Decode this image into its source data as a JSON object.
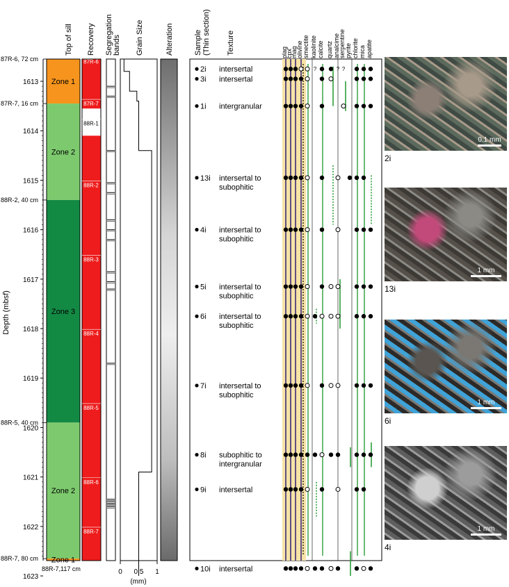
{
  "headers": {
    "top_of_sill": "Top of sill",
    "recovery": "Recovery",
    "segregation": [
      "Segregation",
      "bands"
    ],
    "grain_size": "Grain Size",
    "alteration": "Alteration",
    "sample": [
      "Sample",
      "(Thin section)"
    ],
    "texture": "Texture",
    "depth_axis": "Depth (mbsf)",
    "grain_unit": "(mm)"
  },
  "depth_ticks": [
    "1613",
    "1614",
    "1615",
    "1616",
    "1617",
    "1618",
    "1619",
    "1620",
    "1621",
    "1622",
    "1623"
  ],
  "depth_values": [
    1613,
    1614,
    1615,
    1616,
    1617,
    1618,
    1619,
    1620,
    1621,
    1622,
    1623
  ],
  "core_labels": [
    {
      "text": "87R-6, 72 cm",
      "depth": 1612.55
    },
    {
      "text": "87R-7, 16 cm",
      "depth": 1613.45
    },
    {
      "text": "88R-2, 40 cm",
      "depth": 1615.4
    },
    {
      "text": "88R-5, 40 cm",
      "depth": 1619.9
    },
    {
      "text": "88R-7, 80 cm",
      "depth": 1622.65
    },
    {
      "text": "88R-7,117 cm",
      "depth": 1623.2
    }
  ],
  "zones": [
    {
      "name": "Zone 1",
      "top": 1612.55,
      "bottom": 1613.45,
      "color": "#f7941d"
    },
    {
      "name": "Zone 2",
      "top": 1613.45,
      "bottom": 1615.4,
      "color": "#7dca6e"
    },
    {
      "name": "Zone 3",
      "top": 1615.4,
      "bottom": 1619.9,
      "color": "#138a44"
    },
    {
      "name": "Zone 2",
      "top": 1619.9,
      "bottom": 1622.65,
      "color": "#7dca6e"
    },
    {
      "name": "Zone 1",
      "top": 1622.65,
      "bottom": 1623.0,
      "color": "#f7941d"
    }
  ],
  "recovery_sections": [
    {
      "label": "87R-6",
      "depth": 1612.6
    },
    {
      "label": "87R-7",
      "depth": 1613.45
    },
    {
      "label": "88R-1",
      "depth": 1613.85
    },
    {
      "label": "88R-2",
      "depth": 1615.1
    },
    {
      "label": "88R-3",
      "depth": 1616.6
    },
    {
      "label": "88R-4",
      "depth": 1618.1
    },
    {
      "label": "88R-5",
      "depth": 1619.6
    },
    {
      "label": "88R-6",
      "depth": 1621.1
    },
    {
      "label": "88R-7",
      "depth": 1622.1
    }
  ],
  "recovery_gaps": [
    {
      "top": 1613.55,
      "bottom": 1614.1
    }
  ],
  "segregation_bands": [
    1613.1,
    1613.3,
    1614.4,
    1615.05,
    1615.25,
    1615.8,
    1616.0,
    1616.2,
    1616.85,
    1617.05,
    1617.2,
    1618.7,
    1621.45,
    1621.5,
    1621.55,
    1621.6
  ],
  "grain_size_ticks": [
    "0",
    "0.5",
    "1"
  ],
  "grain_size_profile": [
    [
      1612.55,
      0.1
    ],
    [
      1612.8,
      0.1
    ],
    [
      1612.8,
      0.25
    ],
    [
      1613.2,
      0.25
    ],
    [
      1613.2,
      0.45
    ],
    [
      1613.4,
      0.45
    ],
    [
      1613.4,
      0.5
    ],
    [
      1614.4,
      0.5
    ],
    [
      1614.4,
      0.85
    ],
    [
      1620.9,
      0.85
    ],
    [
      1620.9,
      0.5
    ],
    [
      1623.0,
      0.5
    ]
  ],
  "minerals": [
    "plag",
    "cpx",
    "mag",
    "olivine",
    "smectite",
    "kaolinite",
    "calcite",
    "quartz",
    "analcime",
    "serpentine",
    "pyrite",
    "chlorite",
    "mica",
    "apatite"
  ],
  "samples": [
    {
      "id": "2i",
      "depth": 1612.75,
      "texture": [
        "intersertal"
      ],
      "marks": [
        "F",
        "F",
        "F",
        "O",
        "O",
        "Q",
        "F",
        "F",
        "Q",
        "Q",
        "",
        "F",
        "F",
        "F"
      ]
    },
    {
      "id": "3i",
      "depth": 1612.95,
      "texture": [
        "intersertal"
      ],
      "marks": [
        "F",
        "F",
        "F",
        "F",
        "O",
        "",
        "F",
        "O",
        "",
        "",
        "",
        "F",
        "F",
        "F"
      ]
    },
    {
      "id": "1i",
      "depth": 1613.5,
      "texture": [
        "intergranular"
      ],
      "marks": [
        "F",
        "F",
        "F",
        "F",
        "O",
        "",
        "F",
        "",
        "",
        "O",
        "",
        "F",
        "F",
        "F"
      ]
    },
    {
      "id": "13i",
      "depth": 1614.95,
      "texture": [
        "intersertal to",
        "subophitic"
      ],
      "marks": [
        "F",
        "F",
        "F",
        "F",
        "O",
        "",
        "F",
        "",
        "O",
        "",
        "F",
        "F",
        "F",
        ""
      ]
    },
    {
      "id": "4i",
      "depth": 1616.0,
      "texture": [
        "intersertal to",
        "subophitic"
      ],
      "marks": [
        "F",
        "F",
        "F",
        "F",
        "O",
        "",
        "F",
        "",
        "O",
        "",
        "",
        "F",
        "F",
        "F"
      ]
    },
    {
      "id": "5i",
      "depth": 1617.15,
      "texture": [
        "intersertal to",
        "subophitic"
      ],
      "marks": [
        "F",
        "F",
        "F",
        "F",
        "O",
        "",
        "F",
        "O",
        "O",
        "",
        "",
        "F",
        "F",
        "F"
      ]
    },
    {
      "id": "6i",
      "depth": 1617.75,
      "texture": [
        "intersertal to",
        "subophitic"
      ],
      "marks": [
        "F",
        "F",
        "F",
        "F",
        "O",
        "F",
        "O",
        "O",
        "O",
        "",
        "",
        "F",
        "F",
        "F"
      ]
    },
    {
      "id": "7i",
      "depth": 1619.15,
      "texture": [
        "intersertal to",
        "subophitic"
      ],
      "marks": [
        "F",
        "F",
        "F",
        "F",
        "O",
        "",
        "F",
        "O",
        "O",
        "",
        "",
        "F",
        "F",
        "F"
      ]
    },
    {
      "id": "8i",
      "depth": 1620.55,
      "texture": [
        "subophitic to",
        "intergranular"
      ],
      "marks": [
        "F",
        "F",
        "F",
        "F",
        "F",
        "F",
        "O",
        "F",
        "F",
        "",
        "",
        "F",
        "F",
        "F"
      ]
    },
    {
      "id": "9i",
      "depth": 1621.25,
      "texture": [
        "intersertal"
      ],
      "marks": [
        "F",
        "F",
        "F",
        "F",
        "O",
        "",
        "F",
        "",
        "O",
        "",
        "",
        "F",
        "F",
        ""
      ]
    },
    {
      "id": "10i",
      "depth": 1622.85,
      "texture": [
        "intersertal"
      ],
      "marks": [
        "F",
        "F",
        "F",
        "F",
        "O",
        "F",
        "F",
        "O",
        "F",
        "",
        "",
        "F",
        "O",
        "F"
      ]
    }
  ],
  "photos": [
    {
      "caption": "2i",
      "scale": "0.1 mm",
      "colors": [
        "#5b6a5c",
        "#a89a8a",
        "#3f4a44",
        "#8c7f76"
      ]
    },
    {
      "caption": "13i",
      "scale": "1 mm",
      "colors": [
        "#3d3a36",
        "#8b8a85",
        "#55504a",
        "#c24a7a"
      ]
    },
    {
      "caption": "6i",
      "scale": "1 mm",
      "colors": [
        "#2c2a28",
        "#7b7873",
        "#3fa3d8",
        "#5a5550"
      ]
    },
    {
      "caption": "4i",
      "scale": "1 mm",
      "colors": [
        "#3a3a3a",
        "#9c9c9c",
        "#5e5e5e",
        "#cfcfcf"
      ]
    }
  ]
}
